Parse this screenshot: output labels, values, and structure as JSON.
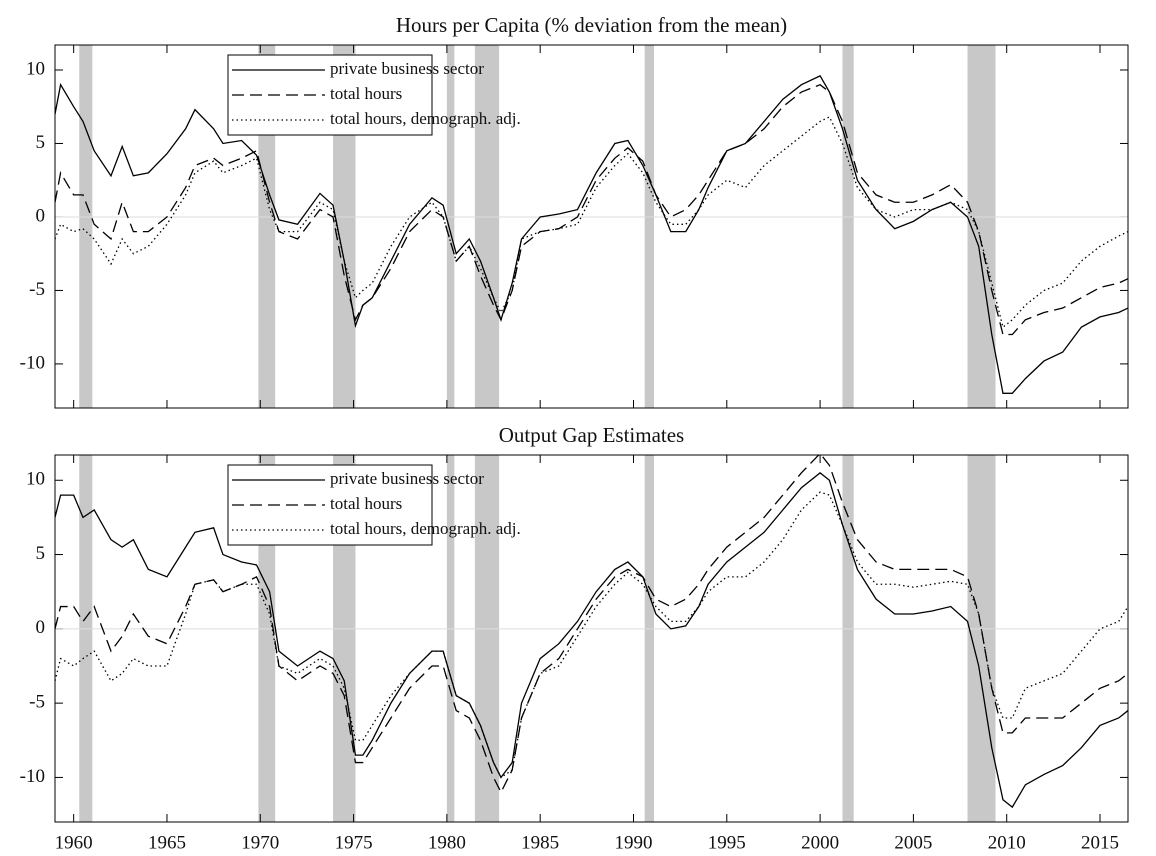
{
  "chart_data": [
    {
      "type": "line",
      "title": "Hours per Capita (% deviation from the mean)",
      "x": [
        1959.0,
        1959.3,
        1960,
        1960.5,
        1961.1,
        1962,
        1962.6,
        1963.2,
        1964,
        1965,
        1966,
        1966.5,
        1967.5,
        1968,
        1969,
        1969.8,
        1970.5,
        1971,
        1972,
        1973.2,
        1973.9,
        1974.5,
        1975.1,
        1975.5,
        1976,
        1977,
        1978,
        1979.2,
        1979.8,
        1980.5,
        1981.2,
        1981.8,
        1982.5,
        1982.9,
        1983.5,
        1984,
        1985,
        1986,
        1987,
        1988,
        1989,
        1989.7,
        1990.5,
        1991.2,
        1992,
        1992.8,
        1993.5,
        1994,
        1995,
        1996,
        1997,
        1998,
        1999,
        2000,
        2000.5,
        2001.2,
        2002,
        2003,
        2004,
        2005,
        2006,
        2007,
        2007.9,
        2008.5,
        2009.2,
        2009.8,
        2010.3,
        2011,
        2012,
        2013,
        2014,
        2015,
        2016,
        2016.5
      ],
      "series": [
        {
          "name": "private business sector",
          "color": "#000000",
          "style": "solid",
          "values": [
            7,
            9,
            7.5,
            6.5,
            4.5,
            2.8,
            4.8,
            2.8,
            3,
            4.3,
            6,
            7.3,
            6,
            5,
            5.2,
            4.2,
            1.5,
            -0.2,
            -0.5,
            1.6,
            0.8,
            -3,
            -7.4,
            -6,
            -5.5,
            -3,
            -0.5,
            1.3,
            0.8,
            -2.5,
            -1.5,
            -3,
            -5.5,
            -7,
            -4.5,
            -1.5,
            0,
            0.2,
            0.5,
            3,
            5,
            5.2,
            3.5,
            1.5,
            -1,
            -1,
            0.5,
            2,
            4.5,
            5,
            6.5,
            8,
            9,
            9.6,
            8.5,
            6,
            2.5,
            0.5,
            -0.8,
            -0.3,
            0.5,
            1,
            0,
            -2,
            -8,
            -12,
            -12,
            -11,
            -9.8,
            -9.2,
            -7.5,
            -6.8,
            -6.5,
            -6.2
          ]
        },
        {
          "name": "total hours",
          "color": "#000000",
          "style": "dashed",
          "values": [
            1,
            3,
            1.5,
            1.5,
            -0.5,
            -1.5,
            1,
            -1,
            -1,
            0,
            2,
            3.5,
            4,
            3.5,
            4,
            4.5,
            1,
            -1,
            -1.5,
            0.5,
            0,
            -4,
            -7,
            -6,
            -5.5,
            -3.5,
            -1,
            0.5,
            0,
            -3,
            -2,
            -4,
            -6,
            -7,
            -5,
            -2,
            -1,
            -0.8,
            0,
            2.5,
            4,
            4.7,
            3.8,
            1.5,
            0,
            0.5,
            1.5,
            2.5,
            4.5,
            5,
            6,
            7.5,
            8.5,
            9,
            8.5,
            6.5,
            3,
            1.5,
            1,
            1,
            1.5,
            2.2,
            1,
            -1,
            -5,
            -8,
            -8,
            -7,
            -6.5,
            -6.2,
            -5.5,
            -4.8,
            -4.5,
            -4.2
          ]
        },
        {
          "name": "total hours, demograph. adj.",
          "color": "#000000",
          "style": "dotted",
          "values": [
            -1.5,
            -0.5,
            -1,
            -0.8,
            -1.5,
            -3.2,
            -1.5,
            -2.5,
            -2,
            -0.5,
            1.5,
            3,
            3.8,
            3,
            3.5,
            4,
            0.5,
            -1,
            -1,
            1,
            0.5,
            -3,
            -5.5,
            -5,
            -4.5,
            -2,
            0,
            1,
            0,
            -3,
            -2,
            -3.5,
            -5.5,
            -6.5,
            -5,
            -1.5,
            -1,
            -0.8,
            -0.5,
            2,
            3.5,
            4.3,
            3,
            1,
            -0.5,
            -0.5,
            0.5,
            1.5,
            2.5,
            2,
            3.5,
            4.5,
            5.5,
            6.5,
            6.8,
            5,
            2,
            0.5,
            0,
            0.5,
            0.5,
            1,
            0.5,
            -1,
            -4.5,
            -7.5,
            -7,
            -6,
            -5,
            -4.5,
            -3,
            -2,
            -1.3,
            -1
          ]
        }
      ],
      "xlim": [
        1959,
        2016.5
      ],
      "xticks": [
        1960,
        1965,
        1970,
        1975,
        1980,
        1985,
        1990,
        1995,
        2000,
        2005,
        2010,
        2015
      ],
      "show_xtick_labels": false,
      "ylim": [
        -13,
        11.7
      ],
      "yticks": [
        -10,
        -5,
        0,
        5,
        10
      ],
      "zero_line": true,
      "legend": "upper left",
      "shaded_spans": [
        [
          1960.3,
          1961.0
        ],
        [
          1969.9,
          1970.8
        ],
        [
          1973.9,
          1975.1
        ],
        [
          1980.0,
          1980.4
        ],
        [
          1981.5,
          1982.8
        ],
        [
          1990.6,
          1991.1
        ],
        [
          2001.2,
          2001.8
        ],
        [
          2007.9,
          2009.4
        ]
      ],
      "shade_color": "#c8c8c8"
    },
    {
      "type": "line",
      "title": "Output Gap Estimates",
      "x": [
        1959.0,
        1959.3,
        1960,
        1960.5,
        1961.1,
        1962,
        1962.6,
        1963.2,
        1964,
        1965,
        1966,
        1966.5,
        1967.5,
        1968,
        1969,
        1969.8,
        1970.5,
        1971,
        1972,
        1973.2,
        1973.9,
        1974.5,
        1975.1,
        1975.5,
        1976,
        1977,
        1978,
        1979.2,
        1979.8,
        1980.5,
        1981.2,
        1981.8,
        1982.5,
        1982.9,
        1983.5,
        1984,
        1985,
        1986,
        1987,
        1988,
        1989,
        1989.7,
        1990.5,
        1991.2,
        1992,
        1992.8,
        1993.5,
        1994,
        1995,
        1996,
        1997,
        1998,
        1999,
        2000,
        2000.5,
        2001.2,
        2002,
        2003,
        2004,
        2005,
        2006,
        2007,
        2007.9,
        2008.5,
        2009.2,
        2009.8,
        2010.3,
        2011,
        2012,
        2013,
        2014,
        2015,
        2016,
        2016.5
      ],
      "series": [
        {
          "name": "private business sector",
          "color": "#000000",
          "style": "solid",
          "values": [
            7.5,
            9,
            9,
            7.5,
            8,
            6,
            5.5,
            6,
            4,
            3.5,
            5.5,
            6.5,
            6.8,
            5,
            4.5,
            4.3,
            2.5,
            -1.5,
            -2.5,
            -1.5,
            -2,
            -3.5,
            -8.5,
            -8.5,
            -7.5,
            -5,
            -3,
            -1.5,
            -1.5,
            -4.5,
            -5,
            -6.5,
            -9,
            -10,
            -9,
            -5,
            -2,
            -1,
            0.5,
            2.5,
            4,
            4.5,
            3.5,
            1,
            0,
            0.2,
            1.5,
            3,
            4.5,
            5.5,
            6.5,
            8,
            9.5,
            10.5,
            10,
            7,
            4,
            2,
            1,
            1,
            1.2,
            1.5,
            0.5,
            -2.5,
            -8,
            -11.5,
            -12,
            -10.5,
            -9.8,
            -9.2,
            -8,
            -6.5,
            -6,
            -5.5
          ]
        },
        {
          "name": "total hours",
          "color": "#000000",
          "style": "dashed",
          "values": [
            0,
            1.5,
            1.5,
            0.5,
            1.5,
            -1.5,
            -0.5,
            1,
            -0.5,
            -1,
            1.5,
            3,
            3.3,
            2.5,
            3,
            3.5,
            1.5,
            -2.5,
            -3.5,
            -2.5,
            -3,
            -4.5,
            -9,
            -9,
            -8,
            -6,
            -4,
            -2.5,
            -2.5,
            -5.5,
            -6,
            -7.5,
            -10,
            -11,
            -9.5,
            -6,
            -3,
            -2,
            0,
            2,
            3.5,
            4,
            3.5,
            2,
            1.5,
            2,
            3,
            4,
            5.5,
            6.5,
            7.5,
            9,
            10.5,
            11.8,
            11,
            8.5,
            6,
            4.5,
            4,
            4,
            4,
            4,
            3.5,
            1,
            -4,
            -7,
            -7,
            -6,
            -6,
            -6,
            -5,
            -4,
            -3.5,
            -3
          ]
        },
        {
          "name": "total hours, demograph. adj.",
          "color": "#000000",
          "style": "dotted",
          "values": [
            -3.5,
            -2,
            -2.5,
            -2,
            -1.5,
            -3.5,
            -3,
            -2,
            -2.5,
            -2.5,
            1,
            3,
            3.3,
            2.5,
            3,
            3,
            1,
            -2.5,
            -3,
            -2,
            -2.5,
            -4,
            -7.5,
            -7.5,
            -6.5,
            -4.5,
            -3,
            -1.5,
            -1.5,
            -4.5,
            -5,
            -6.5,
            -9,
            -10,
            -9.5,
            -6,
            -3,
            -2.5,
            -0.5,
            1.5,
            3,
            3.8,
            3,
            1.5,
            0.5,
            0.5,
            1.5,
            2.5,
            3.5,
            3.5,
            4.5,
            6,
            8,
            9.2,
            9,
            7,
            4.5,
            3,
            3,
            2.8,
            3,
            3.2,
            3,
            1,
            -4,
            -6,
            -6,
            -4,
            -3.5,
            -3,
            -1.5,
            0,
            0.5,
            1.5
          ]
        }
      ],
      "xlim": [
        1959,
        2016.5
      ],
      "xticks": [
        1960,
        1965,
        1970,
        1975,
        1980,
        1985,
        1990,
        1995,
        2000,
        2005,
        2010,
        2015
      ],
      "show_xtick_labels": true,
      "ylim": [
        -13,
        11.7
      ],
      "yticks": [
        -10,
        -5,
        0,
        5,
        10
      ],
      "zero_line": true,
      "legend": "upper left",
      "shaded_spans": [
        [
          1960.3,
          1961.0
        ],
        [
          1969.9,
          1970.8
        ],
        [
          1973.9,
          1975.1
        ],
        [
          1980.0,
          1980.4
        ],
        [
          1981.5,
          1982.8
        ],
        [
          1990.6,
          1991.1
        ],
        [
          2001.2,
          2001.8
        ],
        [
          2007.9,
          2009.4
        ]
      ],
      "shade_color": "#c8c8c8"
    }
  ]
}
